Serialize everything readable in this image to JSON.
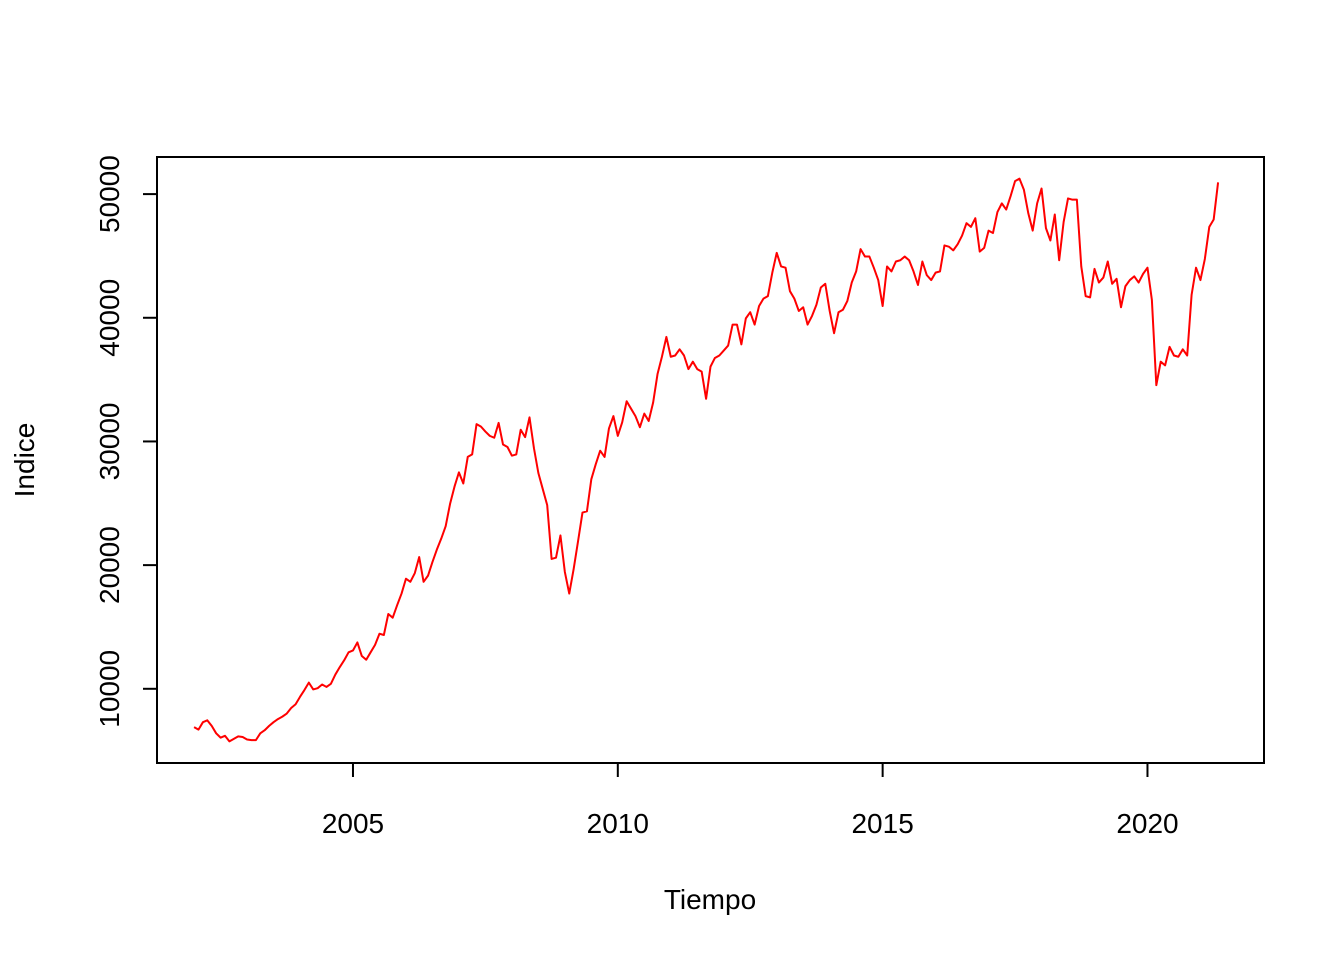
{
  "chart_data": {
    "type": "line",
    "title": "",
    "xlabel": "Tiempo",
    "ylabel": "Indice",
    "xlim": [
      2001.3,
      2022.2
    ],
    "ylim": [
      4000,
      53000
    ],
    "x_ticks": [
      2005,
      2010,
      2015,
      2020
    ],
    "x_tick_labels": [
      "2005",
      "2010",
      "2015",
      "2020"
    ],
    "y_ticks": [
      10000,
      20000,
      30000,
      40000,
      50000
    ],
    "y_tick_labels": [
      "10000",
      "20000",
      "30000",
      "40000",
      "50000"
    ],
    "grid": false,
    "line_color": "#ff0000",
    "series": [
      {
        "x": [
          2002.0,
          2002.083,
          2002.167,
          2002.25,
          2002.333,
          2002.417,
          2002.5,
          2002.583,
          2002.667,
          2002.75,
          2002.833,
          2002.917,
          2003.0,
          2003.083,
          2003.167,
          2003.25,
          2003.333,
          2003.417,
          2003.5,
          2003.583,
          2003.667,
          2003.75,
          2003.833,
          2003.917,
          2004.0,
          2004.083,
          2004.167,
          2004.25,
          2004.333,
          2004.417,
          2004.5,
          2004.583,
          2004.667,
          2004.75,
          2004.833,
          2004.917,
          2005.0,
          2005.083,
          2005.167,
          2005.25,
          2005.333,
          2005.417,
          2005.5,
          2005.583,
          2005.667,
          2005.75,
          2005.833,
          2005.917,
          2006.0,
          2006.083,
          2006.167,
          2006.25,
          2006.333,
          2006.417,
          2006.5,
          2006.583,
          2006.667,
          2006.75,
          2006.833,
          2006.917,
          2007.0,
          2007.083,
          2007.167,
          2007.25,
          2007.333,
          2007.417,
          2007.5,
          2007.583,
          2007.667,
          2007.75,
          2007.833,
          2007.917,
          2008.0,
          2008.083,
          2008.167,
          2008.25,
          2008.333,
          2008.417,
          2008.5,
          2008.583,
          2008.667,
          2008.75,
          2008.833,
          2008.917,
          2009.0,
          2009.083,
          2009.167,
          2009.25,
          2009.333,
          2009.417,
          2009.5,
          2009.583,
          2009.667,
          2009.75,
          2009.833,
          2009.917,
          2010.0,
          2010.083,
          2010.167,
          2010.25,
          2010.333,
          2010.417,
          2010.5,
          2010.583,
          2010.667,
          2010.75,
          2010.833,
          2010.917,
          2011.0,
          2011.083,
          2011.167,
          2011.25,
          2011.333,
          2011.417,
          2011.5,
          2011.583,
          2011.667,
          2011.75,
          2011.833,
          2011.917,
          2012.0,
          2012.083,
          2012.167,
          2012.25,
          2012.333,
          2012.417,
          2012.5,
          2012.583,
          2012.667,
          2012.75,
          2012.833,
          2012.917,
          2013.0,
          2013.083,
          2013.167,
          2013.25,
          2013.333,
          2013.417,
          2013.5,
          2013.583,
          2013.667,
          2013.75,
          2013.833,
          2013.917,
          2014.0,
          2014.083,
          2014.167,
          2014.25,
          2014.333,
          2014.417,
          2014.5,
          2014.583,
          2014.667,
          2014.75,
          2014.833,
          2014.917,
          2015.0,
          2015.083,
          2015.167,
          2015.25,
          2015.333,
          2015.417,
          2015.5,
          2015.583,
          2015.667,
          2015.75,
          2015.833,
          2015.917,
          2016.0,
          2016.083,
          2016.167,
          2016.25,
          2016.333,
          2016.417,
          2016.5,
          2016.583,
          2016.667,
          2016.75,
          2016.833,
          2016.917,
          2017.0,
          2017.083,
          2017.167,
          2017.25,
          2017.333,
          2017.417,
          2017.5,
          2017.583,
          2017.667,
          2017.75,
          2017.833,
          2017.917,
          2018.0,
          2018.083,
          2018.167,
          2018.25,
          2018.333,
          2018.417,
          2018.5,
          2018.583,
          2018.667,
          2018.75,
          2018.833,
          2018.917,
          2019.0,
          2019.083,
          2019.167,
          2019.25,
          2019.333,
          2019.417,
          2019.5,
          2019.583,
          2019.667,
          2019.75,
          2019.833,
          2019.917,
          2020.0,
          2020.083,
          2020.167,
          2020.25,
          2020.333,
          2020.417,
          2020.5,
          2020.583,
          2020.667,
          2020.75,
          2020.833,
          2020.917,
          2021.0,
          2021.083,
          2021.167,
          2021.25,
          2021.333
        ],
        "y": [
          6900,
          6700,
          7300,
          7450,
          7000,
          6400,
          6050,
          6200,
          5750,
          5950,
          6150,
          6100,
          5900,
          5850,
          5850,
          6400,
          6650,
          7000,
          7300,
          7550,
          7750,
          8000,
          8450,
          8750,
          9350,
          9900,
          10500,
          9950,
          10050,
          10350,
          10150,
          10400,
          11150,
          11750,
          12300,
          12950,
          13100,
          13750,
          12650,
          12350,
          12950,
          13550,
          14450,
          14350,
          16050,
          15750,
          16750,
          17700,
          18900,
          18650,
          19350,
          20650,
          18650,
          19150,
          20250,
          21250,
          22150,
          23150,
          24950,
          26350,
          27500,
          26600,
          28750,
          28950,
          31400,
          31200,
          30800,
          30450,
          30300,
          31500,
          29750,
          29550,
          28850,
          28950,
          30950,
          30350,
          31950,
          29450,
          27450,
          26150,
          24850,
          20500,
          20600,
          22400,
          19450,
          17700,
          19700,
          21950,
          24250,
          24350,
          26950,
          28150,
          29250,
          28750,
          31050,
          32050,
          30450,
          31550,
          33250,
          32650,
          32050,
          31150,
          32250,
          31650,
          33150,
          35450,
          36850,
          38450,
          36850,
          36950,
          37450,
          36950,
          35850,
          36450,
          35850,
          35650,
          33450,
          36050,
          36750,
          36950,
          37350,
          37750,
          39450,
          39450,
          37850,
          39950,
          40450,
          39450,
          40950,
          41550,
          41750,
          43650,
          45250,
          44150,
          44050,
          42150,
          41550,
          40550,
          40850,
          39450,
          40150,
          41050,
          42450,
          42750,
          40550,
          38750,
          40450,
          40650,
          41350,
          42850,
          43750,
          45550,
          44950,
          44950,
          44050,
          43050,
          40950,
          44150,
          43750,
          44550,
          44650,
          44950,
          44650,
          43750,
          42650,
          44550,
          43450,
          43050,
          43650,
          43750,
          45850,
          45750,
          45450,
          45950,
          46650,
          47650,
          47350,
          48050,
          45350,
          45650,
          47050,
          46850,
          48550,
          49250,
          48750,
          49850,
          51050,
          51250,
          50350,
          48450,
          47050,
          49250,
          50450,
          47250,
          46250,
          48350,
          44650,
          47750,
          49650,
          49550,
          49550,
          44150,
          41750,
          41650,
          43950,
          42850,
          43250,
          44550,
          42750,
          43150,
          40850,
          42550,
          43050,
          43350,
          42850,
          43550,
          44050,
          41450,
          34550,
          36450,
          36150,
          37650,
          36950,
          36850,
          37450,
          36950,
          41850,
          44050,
          43050,
          44750,
          47350,
          47950,
          50950
        ]
      }
    ]
  }
}
